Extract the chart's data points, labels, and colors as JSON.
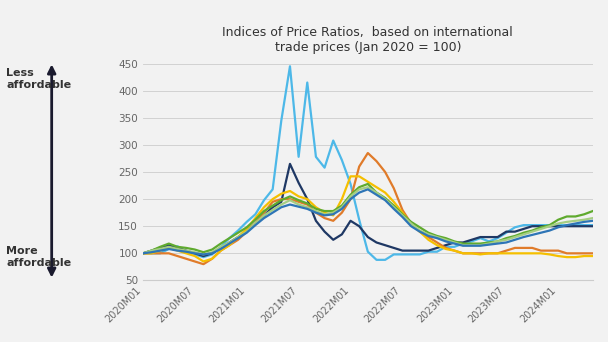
{
  "title": "Indices of Price Ratios,  based on international\ntrade prices (Jan 2020 = 100)",
  "ylim": [
    50,
    460
  ],
  "yticks": [
    50,
    100,
    150,
    200,
    250,
    300,
    350,
    400,
    450
  ],
  "xtick_labels": [
    "2020M01",
    "2020M07",
    "2021M01",
    "2021M07",
    "2022M01",
    "2022M07",
    "2023M01",
    "2023M07",
    "2024M01"
  ],
  "left_label_top": "Less\naffordable",
  "left_label_bottom": "More\naffordable",
  "background_color": "#f2f2f2",
  "arrow_color": "#1a1a2e",
  "lines": [
    {
      "color": "#4db8e8",
      "linewidth": 1.6,
      "data": [
        100,
        100,
        100,
        108,
        113,
        103,
        98,
        93,
        98,
        112,
        128,
        142,
        158,
        172,
        198,
        218,
        345,
        445,
        278,
        415,
        278,
        258,
        308,
        272,
        228,
        162,
        103,
        88,
        88,
        98,
        98,
        98,
        98,
        103,
        103,
        112,
        112,
        118,
        122,
        128,
        122,
        128,
        138,
        148,
        152,
        152,
        152,
        152,
        152,
        152,
        152,
        152,
        152
      ]
    },
    {
      "color": "#1f3864",
      "linewidth": 1.6,
      "data": [
        100,
        105,
        110,
        115,
        110,
        105,
        100,
        95,
        100,
        110,
        120,
        130,
        140,
        155,
        170,
        185,
        195,
        265,
        230,
        200,
        160,
        140,
        125,
        135,
        160,
        150,
        130,
        120,
        115,
        110,
        105,
        105,
        105,
        105,
        110,
        115,
        120,
        120,
        125,
        130,
        130,
        130,
        140,
        140,
        145,
        150,
        150,
        150,
        150,
        150,
        150,
        150,
        150
      ]
    },
    {
      "color": "#e07b2a",
      "linewidth": 1.6,
      "data": [
        100,
        100,
        100,
        100,
        95,
        90,
        85,
        80,
        90,
        105,
        115,
        125,
        140,
        155,
        175,
        195,
        200,
        200,
        195,
        190,
        175,
        165,
        160,
        175,
        200,
        260,
        285,
        270,
        250,
        220,
        180,
        155,
        140,
        130,
        120,
        110,
        105,
        100,
        100,
        100,
        100,
        100,
        105,
        110,
        110,
        110,
        105,
        105,
        105,
        100,
        100,
        100,
        100
      ]
    },
    {
      "color": "#f5bf00",
      "linewidth": 1.6,
      "data": [
        100,
        100,
        105,
        110,
        105,
        100,
        95,
        85,
        90,
        105,
        115,
        130,
        145,
        165,
        185,
        200,
        210,
        215,
        205,
        200,
        185,
        175,
        170,
        200,
        242,
        242,
        232,
        222,
        212,
        195,
        175,
        155,
        140,
        125,
        115,
        108,
        105,
        100,
        100,
        98,
        100,
        100,
        100,
        100,
        100,
        100,
        100,
        98,
        95,
        93,
        93,
        95,
        95
      ]
    },
    {
      "color": "#5faa2e",
      "linewidth": 1.6,
      "data": [
        100,
        105,
        112,
        118,
        112,
        110,
        107,
        102,
        107,
        118,
        128,
        138,
        148,
        162,
        178,
        188,
        198,
        205,
        198,
        192,
        182,
        178,
        178,
        188,
        208,
        222,
        228,
        212,
        202,
        188,
        172,
        158,
        148,
        138,
        132,
        128,
        122,
        118,
        118,
        118,
        120,
        122,
        128,
        132,
        138,
        142,
        148,
        152,
        162,
        168,
        168,
        172,
        178
      ]
    },
    {
      "color": "#a5ce82",
      "linewidth": 1.6,
      "data": [
        100,
        105,
        108,
        112,
        108,
        105,
        102,
        98,
        102,
        112,
        120,
        130,
        140,
        155,
        170,
        180,
        190,
        198,
        190,
        185,
        178,
        172,
        175,
        185,
        205,
        218,
        222,
        212,
        200,
        185,
        170,
        155,
        142,
        135,
        130,
        125,
        120,
        115,
        115,
        115,
        118,
        122,
        125,
        130,
        135,
        140,
        145,
        150,
        155,
        158,
        160,
        162,
        165
      ]
    },
    {
      "color": "#2e75b6",
      "linewidth": 1.6,
      "data": [
        100,
        102,
        105,
        108,
        105,
        103,
        100,
        98,
        100,
        108,
        118,
        128,
        138,
        152,
        165,
        175,
        185,
        190,
        186,
        182,
        175,
        170,
        172,
        182,
        200,
        212,
        218,
        208,
        198,
        182,
        167,
        150,
        140,
        132,
        128,
        122,
        118,
        114,
        114,
        114,
        116,
        118,
        120,
        125,
        130,
        134,
        138,
        142,
        148,
        152,
        155,
        158,
        160
      ]
    }
  ]
}
